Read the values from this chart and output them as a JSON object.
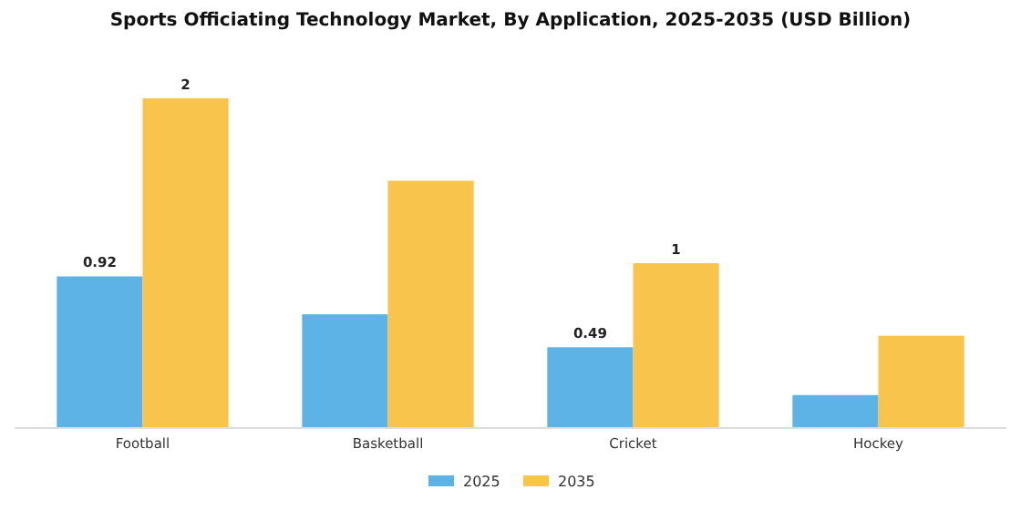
{
  "chart_data": {
    "type": "bar",
    "title": "Sports Officiating Technology Market, By Application, 2025-2035 (USD Billion)",
    "categories": [
      "Football",
      "Basketball",
      "Cricket",
      "Hockey"
    ],
    "series": [
      {
        "name": "2025",
        "color": "#5db3e6",
        "values": [
          0.92,
          0.69,
          0.49,
          0.2
        ],
        "value_labels": [
          "0.92",
          null,
          "0.49",
          null
        ]
      },
      {
        "name": "2035",
        "color": "#f8c44c",
        "values": [
          2,
          1.5,
          1,
          0.56
        ],
        "value_labels": [
          "2",
          null,
          "1",
          null
        ]
      }
    ],
    "legend": "bottom"
  }
}
